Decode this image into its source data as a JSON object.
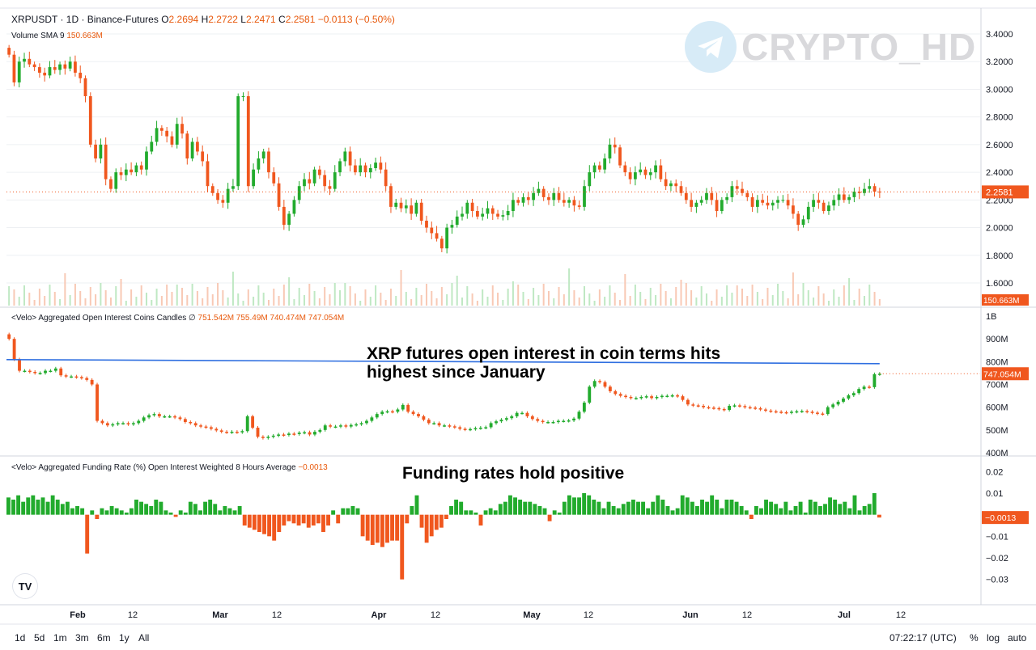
{
  "header": {
    "symbol": "XRPUSDT · 1D · Binance-Futures",
    "o_label": "O",
    "o_value": "2.2694",
    "h_label": "H",
    "h_value": "2.2722",
    "l_label": "L",
    "l_value": "2.2471",
    "c_label": "C",
    "c_value": "2.2581",
    "change": "−0.0113 (−0.50%)",
    "volume_label": "Volume SMA 9",
    "volume_value": "150.663M"
  },
  "watermark": {
    "text": "CRYPTO_HD",
    "icon": "telegram-icon"
  },
  "oi_legend": {
    "label": "<Velo> Aggregated Open Interest Coins Candles",
    "symbol": "∅",
    "values": "751.542M  755.49M  740.474M  747.054M"
  },
  "fr_legend": {
    "label": "<Velo> Aggregated Funding Rate (%) Open Interest Weighted 8 Hours Average",
    "value": "−0.0013"
  },
  "annotations": {
    "oi_line1": "XRP futures open interest in coin terms hits",
    "oi_line2": "highest since January",
    "funding": "Funding rates hold positive"
  },
  "logo": {
    "text": "TV",
    "icon": "tradingview-logo-icon"
  },
  "time_ranges": [
    "1d",
    "5d",
    "1m",
    "3m",
    "6m",
    "1y",
    "All"
  ],
  "status": {
    "clock": "07:22:17 (UTC)",
    "percent": "%",
    "log": "log",
    "auto": "auto"
  },
  "colors": {
    "up": "#22ab2d",
    "down": "#f0571e",
    "price_label": "#f0571e",
    "resistance_line": "#2f6fe0",
    "grid": "#eef0f3"
  },
  "chart_data": [
    {
      "type": "candlestick",
      "name": "XRPUSDT",
      "y_ticks": [
        "3.4000",
        "3.2000",
        "3.0000",
        "2.8000",
        "2.6000",
        "2.4000",
        "2.2000",
        "2.0000",
        "1.8000",
        "1.6000"
      ],
      "ylim": [
        1.6,
        3.4
      ],
      "last_price": 2.2581,
      "last_price_label": "2.2581",
      "volume_label": "150.663M",
      "x_ticks": [
        "Feb",
        "12",
        "Mar",
        "12",
        "Apr",
        "12",
        "May",
        "12",
        "Jun",
        "12",
        "Jul",
        "12"
      ],
      "closes": [
        3.25,
        3.05,
        3.2,
        3.22,
        3.18,
        3.16,
        3.12,
        3.1,
        3.16,
        3.14,
        3.18,
        3.15,
        3.2,
        3.12,
        3.08,
        2.95,
        2.6,
        2.5,
        2.6,
        2.35,
        2.28,
        2.4,
        2.38,
        2.42,
        2.4,
        2.45,
        2.42,
        2.55,
        2.62,
        2.72,
        2.7,
        2.66,
        2.6,
        2.75,
        2.68,
        2.5,
        2.62,
        2.55,
        2.48,
        2.3,
        2.25,
        2.2,
        2.18,
        2.28,
        2.3,
        2.95,
        2.95,
        2.3,
        2.42,
        2.5,
        2.55,
        2.4,
        2.32,
        2.15,
        2.02,
        2.1,
        2.2,
        2.3,
        2.35,
        2.32,
        2.42,
        2.38,
        2.3,
        2.28,
        2.4,
        2.48,
        2.55,
        2.45,
        2.4,
        2.45,
        2.4,
        2.43,
        2.47,
        2.42,
        2.3,
        2.15,
        2.18,
        2.14,
        2.16,
        2.1,
        2.18,
        2.05,
        2.0,
        1.96,
        1.92,
        1.85,
        2.0,
        2.02,
        2.08,
        2.1,
        2.18,
        2.12,
        2.08,
        2.1,
        2.14,
        2.1,
        2.08,
        2.09,
        2.12,
        2.2,
        2.18,
        2.22,
        2.2,
        2.25,
        2.28,
        2.22,
        2.2,
        2.25,
        2.2,
        2.18,
        2.2,
        2.16,
        2.15,
        2.3,
        2.4,
        2.45,
        2.42,
        2.5,
        2.6,
        2.58,
        2.45,
        2.4,
        2.35,
        2.4,
        2.42,
        2.38,
        2.4,
        2.45,
        2.35,
        2.3,
        2.32,
        2.3,
        2.25,
        2.2,
        2.15,
        2.18,
        2.2,
        2.25,
        2.2,
        2.12,
        2.2,
        2.22,
        2.3,
        2.28,
        2.25,
        2.22,
        2.15,
        2.2,
        2.18,
        2.16,
        2.18,
        2.2,
        2.2,
        2.16,
        2.1,
        2.02,
        2.06,
        2.15,
        2.2,
        2.18,
        2.12,
        2.16,
        2.2,
        2.24,
        2.2,
        2.22,
        2.26,
        2.25,
        2.28,
        2.3,
        2.26,
        2.2581
      ]
    },
    {
      "type": "candlestick",
      "name": "<Velo> Aggregated Open Interest Coins Candles",
      "y_ticks": [
        "1B",
        "900M",
        "800M",
        "700M",
        "600M",
        "500M",
        "400M"
      ],
      "ylim": [
        400,
        1000
      ],
      "units": "M",
      "last_value_label": "747.054M",
      "highlight_level": 802,
      "values": [
        900,
        810,
        760,
        760,
        755,
        750,
        750,
        760,
        760,
        770,
        740,
        735,
        735,
        732,
        728,
        720,
        700,
        540,
        530,
        520,
        525,
        530,
        530,
        525,
        530,
        540,
        555,
        565,
        570,
        560,
        560,
        560,
        555,
        548,
        535,
        530,
        520,
        515,
        512,
        505,
        498,
        492,
        490,
        492,
        490,
        495,
        560,
        510,
        470,
        465,
        470,
        475,
        480,
        478,
        484,
        482,
        488,
        490,
        480,
        492,
        500,
        520,
        515,
        515,
        520,
        515,
        522,
        525,
        530,
        540,
        555,
        570,
        580,
        582,
        580,
        590,
        610,
        580,
        570,
        560,
        545,
        530,
        530,
        520,
        520,
        516,
        512,
        505,
        502,
        504,
        508,
        510,
        512,
        530,
        538,
        545,
        552,
        560,
        575,
        575,
        560,
        548,
        540,
        535,
        535,
        535,
        540,
        540,
        542,
        550,
        580,
        620,
        690,
        715,
        710,
        690,
        670,
        658,
        650,
        645,
        640,
        640,
        645,
        648,
        640,
        645,
        650,
        650,
        652,
        648,
        632,
        612,
        608,
        606,
        600,
        598,
        596,
        592,
        588,
        606,
        608,
        605,
        600,
        598,
        595,
        590,
        585,
        582,
        580,
        578,
        576,
        580,
        582,
        583,
        580,
        576,
        572,
        570,
        600,
        612,
        624,
        638,
        652,
        662,
        680,
        690,
        688,
        745,
        747
      ]
    },
    {
      "type": "bar",
      "name": "<Velo> Aggregated Funding Rate (%) Open Interest Weighted 8 Hours Average",
      "y_ticks": [
        "0.02",
        "0.01",
        "−0.01",
        "−0.02",
        "−0.03"
      ],
      "ylim": [
        -0.035,
        0.022
      ],
      "last_value_label": "−0.0013",
      "values": [
        0.008,
        0.007,
        0.009,
        0.006,
        0.008,
        0.009,
        0.007,
        0.008,
        0.006,
        0.009,
        0.007,
        0.005,
        0.006,
        0.003,
        0.004,
        0.003,
        -0.018,
        0.002,
        -0.002,
        0.003,
        0.002,
        0.004,
        0.003,
        0.002,
        0.001,
        0.003,
        0.007,
        0.006,
        0.005,
        0.004,
        0.007,
        0.006,
        0.002,
        0.001,
        -0.001,
        0.002,
        0.001,
        0.006,
        0.005,
        0.002,
        0.006,
        0.007,
        0.005,
        0.002,
        0.004,
        0.003,
        0.002,
        0.004,
        -0.005,
        -0.006,
        -0.007,
        -0.008,
        -0.009,
        -0.01,
        -0.012,
        -0.008,
        -0.005,
        -0.003,
        -0.004,
        -0.005,
        -0.004,
        -0.006,
        -0.005,
        -0.004,
        -0.008,
        -0.005,
        0.002,
        -0.004,
        0.003,
        0.003,
        0.004,
        0.003,
        -0.01,
        -0.012,
        -0.014,
        -0.013,
        -0.015,
        -0.013,
        -0.012,
        -0.012,
        -0.03,
        -0.004,
        0.004,
        0.009,
        -0.006,
        -0.013,
        -0.01,
        -0.007,
        -0.006,
        -0.002,
        0.004,
        0.007,
        0.006,
        0.002,
        0.002,
        0.001,
        -0.005,
        0.002,
        0.003,
        0.002,
        0.005,
        0.006,
        0.009,
        0.008,
        0.007,
        0.006,
        0.006,
        0.005,
        0.004,
        0.003,
        -0.003,
        0.002,
        0.001,
        0.006,
        0.009,
        0.008,
        0.008,
        0.01,
        0.009,
        0.007,
        0.006,
        0.003,
        0.006,
        0.004,
        0.003,
        0.005,
        0.006,
        0.007,
        0.006,
        0.006,
        0.003,
        0.006,
        0.009,
        0.007,
        0.004,
        0.002,
        0.003,
        0.009,
        0.008,
        0.006,
        0.004,
        0.007,
        0.006,
        0.009,
        0.007,
        0.003,
        0.007,
        0.007,
        0.006,
        0.004,
        0.002,
        -0.002,
        0.004,
        0.003,
        0.007,
        0.006,
        0.005,
        0.003,
        0.006,
        0.002,
        0.004,
        0.006,
        0.001,
        0.007,
        0.006,
        0.004,
        0.005,
        0.008,
        0.007,
        0.005,
        0.006,
        0.003,
        0.009,
        0.002,
        0.004,
        0.005,
        0.01,
        -0.0013
      ]
    }
  ]
}
